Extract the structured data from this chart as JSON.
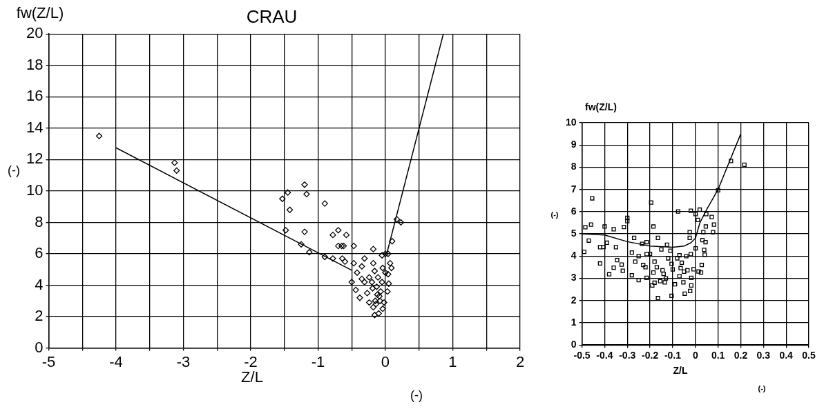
{
  "chart_data": [
    {
      "type": "scatter",
      "title": "CRAU",
      "xlabel": "Z/L",
      "ylabel": "fw(Z/L)",
      "annotations": [
        "(-)",
        "(-)"
      ],
      "grid": true,
      "xlim": [
        -5,
        2
      ],
      "xticks": [
        -5,
        {
          "value": -4.5,
          "label": null
        },
        -4,
        {
          "value": -3.5,
          "label": null
        },
        -3,
        {
          "value": -2.5,
          "label": null
        },
        -2,
        {
          "value": -1.5,
          "label": null
        },
        -1,
        {
          "value": -0.5,
          "label": null
        },
        0,
        {
          "value": 0.5,
          "label": null
        },
        1,
        {
          "value": 1.5,
          "label": null
        },
        2
      ],
      "ylim": [
        0,
        20
      ],
      "yticks": [
        0,
        2,
        4,
        6,
        8,
        10,
        12,
        14,
        16,
        18,
        20
      ],
      "series": [
        {
          "type": "scatter",
          "marker": "diamond",
          "color": "#000000",
          "x": [
            -4.25,
            -3.13,
            -3.1,
            -1.53,
            -1.45,
            -1.42,
            -1.2,
            -1.17,
            -0.9,
            -1.48,
            -1.2,
            -1.25,
            -1.13,
            -0.9,
            -0.78,
            -0.7,
            -0.58,
            -0.7,
            -0.65,
            -0.62,
            -0.47,
            -0.78,
            -0.6,
            -0.18,
            0.17,
            0.23,
            0.1,
            -0.05,
            0,
            -0.64,
            -0.47,
            -0.31,
            -0.18,
            -0.5,
            -0.42,
            -0.35,
            -0.16,
            -0.04,
            0.04,
            0.07,
            0.09,
            0.04,
            0.05,
            0.03,
            -0.44,
            -0.38,
            -0.31,
            -0.27,
            -0.24,
            -0.18,
            -0.16,
            -0.1,
            -0.04,
            -0.02,
            -0.13,
            -0.09,
            -0.2,
            -0.15,
            -0.05,
            0,
            -0.24,
            -0.11,
            -0.35,
            -0.12,
            -0.07,
            -0.14,
            -0.19,
            -0.08
          ],
          "values": [
            13.5,
            11.8,
            11.3,
            9.5,
            9.9,
            8.8,
            10.4,
            9.8,
            9.2,
            7.5,
            7.4,
            6.6,
            6.1,
            5.8,
            7.2,
            7.5,
            7.2,
            6.5,
            6.5,
            6.5,
            6.5,
            5.7,
            5.5,
            6.3,
            8.2,
            8.0,
            6.8,
            5.9,
            6.0,
            5.7,
            5.4,
            5.7,
            5.4,
            4.2,
            4.8,
            5.2,
            4.9,
            5.1,
            6.0,
            5.4,
            5.1,
            4.7,
            4.1,
            3.6,
            3.7,
            3.2,
            4.2,
            3.5,
            2.9,
            2.6,
            2.1,
            2.2,
            2.5,
            2.9,
            3.9,
            3.3,
            4.2,
            3.0,
            4.2,
            4.8,
            4.5,
            4.5,
            4.4,
            3.4,
            3.6,
            2.8,
            3.8,
            3.0
          ]
        },
        {
          "type": "line",
          "marker": "none",
          "color": "#000000",
          "x": [
            -4,
            -0.5
          ],
          "values": [
            12.75,
            4.95
          ]
        },
        {
          "type": "line",
          "marker": "none",
          "color": "#000000",
          "x": [
            0.02,
            0.86
          ],
          "values": [
            6.0,
            20
          ]
        }
      ]
    },
    {
      "type": "scatter",
      "xlabel": "Z/L",
      "ylabel": "fw(Z/L)",
      "annotations": [
        "(-)",
        "(-)"
      ],
      "grid": true,
      "xlim": [
        -0.5,
        0.5
      ],
      "xticks": [
        -0.5,
        -0.4,
        -0.3,
        -0.2,
        -0.1,
        0,
        0.1,
        0.2,
        0.3,
        0.4,
        0.5
      ],
      "ylim": [
        0,
        10
      ],
      "yticks": [
        0,
        1,
        2,
        3,
        4,
        5,
        6,
        7,
        8,
        9,
        10
      ],
      "series": [
        {
          "type": "scatter",
          "marker": "square",
          "color": "#000000",
          "x": [
            -0.49,
            -0.485,
            -0.47,
            -0.46,
            -0.455,
            -0.42,
            -0.42,
            -0.405,
            -0.4,
            -0.39,
            -0.38,
            -0.36,
            -0.36,
            -0.35,
            -0.345,
            -0.325,
            -0.32,
            -0.315,
            -0.3,
            -0.3,
            -0.27,
            -0.28,
            -0.28,
            -0.265,
            -0.25,
            -0.235,
            -0.215,
            -0.23,
            -0.215,
            -0.215,
            -0.195,
            -0.185,
            -0.185,
            -0.19,
            -0.165,
            -0.165,
            -0.18,
            -0.155,
            -0.145,
            -0.125,
            -0.135,
            -0.11,
            -0.105,
            -0.105,
            -0.09,
            -0.076,
            -0.07,
            -0.065,
            -0.053,
            -0.047,
            -0.035,
            -0.025,
            -0.025,
            -0.02,
            -0.02,
            -0.023,
            -0.018,
            -0.018,
            -0.008,
            0.001,
            0.001,
            0.011,
            0.019,
            0.014,
            0.025,
            0.028,
            0.031,
            0.035,
            0.039,
            0.046,
            0.048,
            0.041,
            0.045,
            0.072,
            0.078,
            0.082,
            0.1,
            0.157,
            0.216,
            -0.17,
            -0.14,
            -0.12,
            -0.1,
            -0.08,
            -0.06,
            -0.04,
            -0.2,
            -0.15,
            -0.07,
            -0.05,
            -0.13,
            -0.18,
            -0.25,
            -0.22
          ],
          "values": [
            4.19,
            5.3,
            4.7,
            5.42,
            6.6,
            4.4,
            3.67,
            4.41,
            5.33,
            4.6,
            3.18,
            5.21,
            3.48,
            4.4,
            3.82,
            3.62,
            3.34,
            5.31,
            5.72,
            5.57,
            4.82,
            4.16,
            3.14,
            3.75,
            2.92,
            4.55,
            4.63,
            3.6,
            4.09,
            3.02,
            6.41,
            5.33,
            3.26,
            2.68,
            2.11,
            4.82,
            3.75,
            2.87,
            3.36,
            4.51,
            2.82,
            4.24,
            2.21,
            3.65,
            2.73,
            6.01,
            4.04,
            3.46,
            2.82,
            2.31,
            3.36,
            5.08,
            4.82,
            6.04,
            4.09,
            2.43,
            2.68,
            3.02,
            3.41,
            4.35,
            5.89,
            5.63,
            6.09,
            3.31,
            3.26,
            3.6,
            4.72,
            5.08,
            4.28,
            5.33,
            5.89,
            4.06,
            4.63,
            5.76,
            5.08,
            5.42,
            6.96,
            8.28,
            8.11,
            3.5,
            3.2,
            3.9,
            3.4,
            3.9,
            3.7,
            4.0,
            4.1,
            4.3,
            3.1,
            3.3,
            3.0,
            2.8,
            4.0,
            3.5
          ]
        },
        {
          "type": "line",
          "marker": "none",
          "color": "#000000",
          "x": [
            -0.5,
            -0.4,
            -0.3,
            -0.2,
            -0.1,
            -0.05,
            -0.02,
            0,
            0.02,
            0.05,
            0.1,
            0.2
          ],
          "values": [
            5.0,
            4.95,
            4.65,
            4.45,
            4.4,
            4.45,
            4.6,
            4.8,
            5.5,
            6.1,
            7.0,
            9.5
          ]
        }
      ]
    }
  ]
}
